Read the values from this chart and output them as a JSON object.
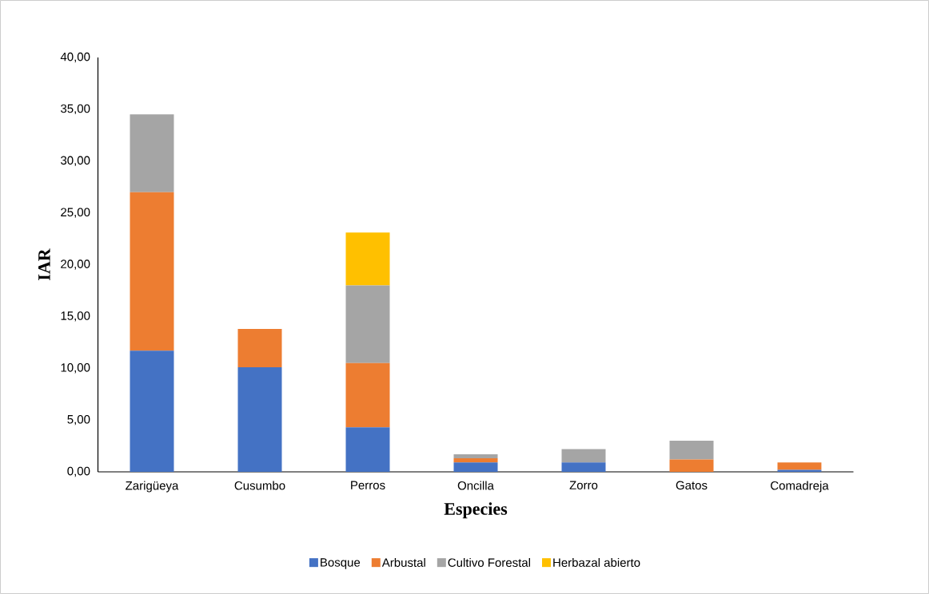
{
  "chart_data": {
    "type": "bar",
    "stacked": true,
    "xlabel": "Especies",
    "ylabel": "IAR",
    "categories": [
      "Zarigüeya",
      "Cusumbo",
      "Perros",
      "Oncilla",
      "Zorro",
      "Gatos",
      "Comadreja"
    ],
    "series": [
      {
        "name": "Bosque",
        "color": "#4472c4",
        "values": [
          11.7,
          10.1,
          4.3,
          0.9,
          0.9,
          0,
          0.2
        ]
      },
      {
        "name": "Arbustal",
        "color": "#ed7d31",
        "values": [
          15.3,
          3.7,
          6.2,
          0.4,
          0,
          1.2,
          0.7
        ]
      },
      {
        "name": "Cultivo Forestal",
        "color": "#a5a5a5",
        "values": [
          7.5,
          0,
          7.5,
          0.4,
          1.3,
          1.8,
          0
        ]
      },
      {
        "name": "Herbazal abierto",
        "color": "#ffc000",
        "values": [
          0,
          0,
          5.1,
          0,
          0,
          0,
          0
        ]
      }
    ],
    "ylim": [
      0,
      40
    ],
    "yticks": [
      {
        "value": 0,
        "label": "0,00"
      },
      {
        "value": 5,
        "label": "5,00"
      },
      {
        "value": 10,
        "label": "10,00"
      },
      {
        "value": 15,
        "label": "15,00"
      },
      {
        "value": 20,
        "label": "20,00"
      },
      {
        "value": 25,
        "label": "25,00"
      },
      {
        "value": 30,
        "label": "30,00"
      },
      {
        "value": 35,
        "label": "35,00"
      },
      {
        "value": 40,
        "label": "40,00"
      }
    ],
    "grid": false,
    "legend": "bottom"
  }
}
